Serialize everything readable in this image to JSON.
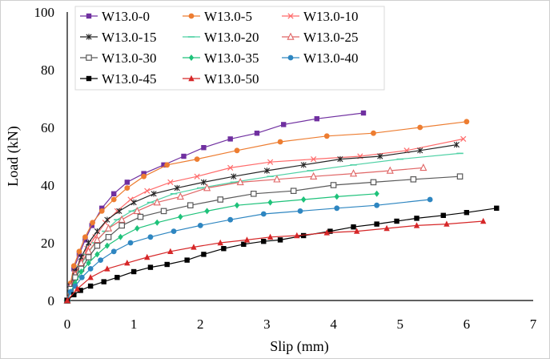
{
  "chart_data": {
    "type": "line",
    "title": "",
    "xlabel": "Slip (mm)",
    "ylabel": "Load (kN)",
    "xlim": [
      0,
      7
    ],
    "ylim": [
      0,
      100
    ],
    "xticks": [
      "0",
      "1",
      "2",
      "3",
      "4",
      "5",
      "6",
      "7"
    ],
    "yticks": [
      "0",
      "20",
      "40",
      "60",
      "80",
      "100"
    ],
    "grid": "none",
    "legend_position": "top-left",
    "legend_columns": 3,
    "series": [
      {
        "name": "W13.0-0",
        "color": "#7030a0",
        "marker": "square",
        "x": [
          0,
          0.05,
          0.1,
          0.18,
          0.27,
          0.37,
          0.52,
          0.7,
          0.9,
          1.15,
          1.45,
          1.75,
          2.05,
          2.45,
          2.85,
          3.25,
          3.75,
          4.45
        ],
        "y": [
          0,
          5,
          11,
          16,
          21,
          26,
          32,
          37,
          41,
          44,
          47,
          50,
          53,
          56,
          58,
          61,
          63,
          65
        ]
      },
      {
        "name": "W13.0-5",
        "color": "#ed7d31",
        "marker": "circle",
        "x": [
          0,
          0.05,
          0.1,
          0.18,
          0.27,
          0.38,
          0.52,
          0.7,
          0.9,
          1.15,
          1.5,
          1.95,
          2.55,
          3.2,
          3.9,
          4.6,
          5.3,
          6.0
        ],
        "y": [
          0,
          6,
          12,
          17,
          22,
          27,
          31,
          35,
          39,
          43,
          47,
          49,
          52,
          55,
          57,
          58,
          60,
          62
        ]
      },
      {
        "name": "W13.0-10",
        "color": "#ff6b6b",
        "marker": "x",
        "x": [
          0,
          0.05,
          0.12,
          0.2,
          0.3,
          0.42,
          0.57,
          0.75,
          0.95,
          1.2,
          1.55,
          1.95,
          2.45,
          3.05,
          3.7,
          4.4,
          5.1,
          5.95
        ],
        "y": [
          0,
          4,
          9,
          13,
          18,
          22,
          27,
          31,
          35,
          38,
          41,
          43,
          46,
          48,
          49,
          50,
          52,
          56
        ]
      },
      {
        "name": "W13.0-15",
        "color": "#262626",
        "marker": "star",
        "x": [
          0,
          0.05,
          0.12,
          0.21,
          0.32,
          0.45,
          0.6,
          0.78,
          1.0,
          1.3,
          1.65,
          2.05,
          2.5,
          3.0,
          3.55,
          4.1,
          4.7,
          5.3,
          5.85
        ],
        "y": [
          0,
          5,
          10,
          15,
          20,
          24,
          28,
          31,
          34,
          37,
          39,
          41,
          43,
          45,
          47,
          49,
          50,
          52,
          54
        ]
      },
      {
        "name": "W13.0-20",
        "color": "#4fd1a5",
        "marker": "dash",
        "x": [
          0,
          0.05,
          0.12,
          0.2,
          0.3,
          0.42,
          0.57,
          0.75,
          0.97,
          1.25,
          1.6,
          2.0,
          2.5,
          3.05,
          3.65,
          4.3,
          5.0,
          5.9
        ],
        "y": [
          0,
          4,
          8,
          12,
          16,
          20,
          24,
          28,
          31,
          34,
          37,
          39,
          41,
          43,
          45,
          47,
          49,
          51
        ]
      },
      {
        "name": "W13.0-25",
        "color": "#e06666",
        "marker": "triangle-open",
        "x": [
          0,
          0.05,
          0.12,
          0.21,
          0.32,
          0.45,
          0.62,
          0.82,
          1.05,
          1.35,
          1.7,
          2.1,
          2.6,
          3.15,
          3.7,
          4.3,
          4.85,
          5.35
        ],
        "y": [
          0,
          5,
          9,
          13,
          17,
          21,
          25,
          28,
          31,
          34,
          36,
          39,
          41,
          42,
          43,
          44,
          45,
          46
        ]
      },
      {
        "name": "W13.0-30",
        "color": "#595959",
        "marker": "square-open",
        "x": [
          0,
          0.05,
          0.12,
          0.21,
          0.32,
          0.45,
          0.62,
          0.82,
          1.1,
          1.45,
          1.85,
          2.3,
          2.8,
          3.4,
          4.0,
          4.6,
          5.2,
          5.9
        ],
        "y": [
          0,
          4,
          8,
          11,
          15,
          19,
          22,
          26,
          29,
          31,
          33,
          35,
          37,
          38,
          40,
          41,
          42,
          43
        ]
      },
      {
        "name": "W13.0-35",
        "color": "#1ec27a",
        "marker": "diamond",
        "x": [
          0,
          0.05,
          0.12,
          0.21,
          0.32,
          0.45,
          0.6,
          0.8,
          1.05,
          1.35,
          1.7,
          2.1,
          2.55,
          3.05,
          3.55,
          4.05,
          4.65
        ],
        "y": [
          0,
          3,
          6,
          10,
          13,
          16,
          19,
          22,
          25,
          27,
          29,
          31,
          33,
          34,
          35,
          36,
          37
        ]
      },
      {
        "name": "W13.0-40",
        "color": "#2e86c1",
        "marker": "circle",
        "x": [
          0,
          0.05,
          0.12,
          0.22,
          0.35,
          0.5,
          0.7,
          0.95,
          1.25,
          1.6,
          2.0,
          2.45,
          2.95,
          3.5,
          4.05,
          4.65,
          5.45
        ],
        "y": [
          0,
          3,
          5,
          8,
          11,
          14,
          17,
          20,
          22,
          24,
          26,
          28,
          30,
          31,
          32,
          33,
          35
        ]
      },
      {
        "name": "W13.0-45",
        "color": "#000000",
        "marker": "square",
        "x": [
          0,
          0.1,
          0.2,
          0.35,
          0.55,
          0.75,
          1.0,
          1.25,
          1.5,
          1.8,
          2.05,
          2.35,
          2.65,
          2.95,
          3.2,
          3.55,
          3.95,
          4.3,
          4.65,
          4.95,
          5.25,
          5.65,
          6.0,
          6.45
        ],
        "y": [
          0,
          2,
          3.5,
          5,
          6.5,
          8,
          10,
          11.5,
          12.5,
          14,
          16,
          18,
          19.5,
          20.5,
          21,
          22.5,
          24,
          25.5,
          26.5,
          27.5,
          28.5,
          29.5,
          30.5,
          32
        ]
      },
      {
        "name": "W13.0-50",
        "color": "#d62728",
        "marker": "triangle",
        "x": [
          0,
          0.15,
          0.35,
          0.6,
          0.9,
          1.2,
          1.55,
          1.9,
          2.3,
          2.7,
          3.05,
          3.45,
          3.9,
          4.35,
          4.8,
          5.25,
          5.7,
          6.25
        ],
        "y": [
          0,
          4,
          8,
          11,
          13,
          15,
          17,
          18.5,
          20,
          21,
          22,
          22.5,
          23.5,
          24,
          25,
          26,
          26.5,
          27.5
        ]
      }
    ]
  }
}
